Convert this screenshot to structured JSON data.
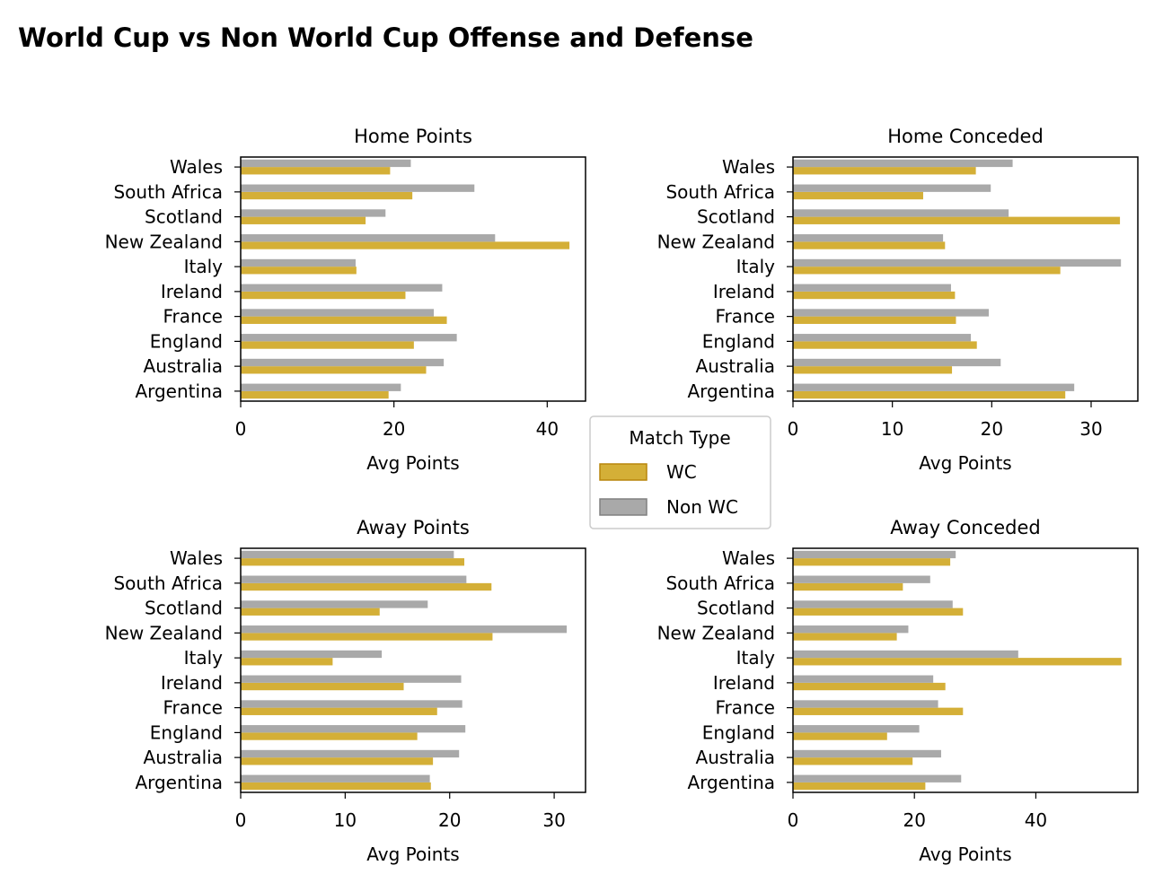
{
  "figure": {
    "title": "World Cup vs Non World Cup Offense and Defense"
  },
  "legend": {
    "title": "Match Type",
    "entries": [
      {
        "label": "WC",
        "color": "#D4AF37",
        "edge": "#B8860B"
      },
      {
        "label": "Non WC",
        "color": "#A9A9A9",
        "edge": "#808080"
      }
    ]
  },
  "chart_data": [
    {
      "type": "bar",
      "orientation": "horizontal",
      "title": "Home Points",
      "xlabel": "Avg Points",
      "ylabel": "",
      "categories": [
        "Argentina",
        "Australia",
        "England",
        "France",
        "Ireland",
        "Italy",
        "New Zealand",
        "Scotland",
        "South Africa",
        "Wales"
      ],
      "series": [
        {
          "name": "WC",
          "color": "#D4AF37",
          "values": [
            19.3,
            24.2,
            22.6,
            26.9,
            21.5,
            15.1,
            42.9,
            16.3,
            22.4,
            19.5
          ]
        },
        {
          "name": "Non WC",
          "color": "#A9A9A9",
          "values": [
            20.9,
            26.5,
            28.2,
            25.2,
            26.3,
            15.0,
            33.2,
            18.9,
            30.5,
            22.2
          ]
        }
      ],
      "xlim": [
        0,
        45
      ],
      "xticks": [
        0,
        20,
        40
      ],
      "grid": false
    },
    {
      "type": "bar",
      "orientation": "horizontal",
      "title": "Home Conceded",
      "xlabel": "Avg Points",
      "ylabel": "",
      "categories": [
        "Argentina",
        "Australia",
        "England",
        "France",
        "Ireland",
        "Italy",
        "New Zealand",
        "Scotland",
        "South Africa",
        "Wales"
      ],
      "series": [
        {
          "name": "WC",
          "color": "#D4AF37",
          "values": [
            27.4,
            16.0,
            18.5,
            16.4,
            16.3,
            26.9,
            15.3,
            32.9,
            13.1,
            18.4
          ]
        },
        {
          "name": "Non WC",
          "color": "#A9A9A9",
          "values": [
            28.3,
            20.9,
            17.9,
            19.7,
            15.9,
            33.0,
            15.1,
            21.7,
            19.9,
            22.1
          ]
        }
      ],
      "xlim": [
        0,
        34.7
      ],
      "xticks": [
        0,
        10,
        20,
        30
      ],
      "grid": false
    },
    {
      "type": "bar",
      "orientation": "horizontal",
      "title": "Away Points",
      "xlabel": "Avg Points",
      "ylabel": "",
      "categories": [
        "Argentina",
        "Australia",
        "England",
        "France",
        "Ireland",
        "Italy",
        "New Zealand",
        "Scotland",
        "South Africa",
        "Wales"
      ],
      "series": [
        {
          "name": "WC",
          "color": "#D4AF37",
          "values": [
            18.2,
            18.4,
            16.9,
            18.8,
            15.6,
            8.8,
            24.1,
            13.3,
            24.0,
            21.4
          ]
        },
        {
          "name": "Non WC",
          "color": "#A9A9A9",
          "values": [
            18.1,
            20.9,
            21.5,
            21.2,
            21.1,
            13.5,
            31.2,
            17.9,
            21.6,
            20.4
          ]
        }
      ],
      "xlim": [
        0,
        33
      ],
      "xticks": [
        0,
        10,
        20,
        30
      ],
      "grid": false
    },
    {
      "type": "bar",
      "orientation": "horizontal",
      "title": "Away Conceded",
      "xlabel": "Avg Points",
      "ylabel": "",
      "categories": [
        "Argentina",
        "Australia",
        "England",
        "France",
        "Ireland",
        "Italy",
        "New Zealand",
        "Scotland",
        "South Africa",
        "Wales"
      ],
      "series": [
        {
          "name": "WC",
          "color": "#D4AF37",
          "values": [
            21.8,
            19.7,
            15.5,
            28.0,
            25.1,
            54.1,
            17.1,
            28.0,
            18.1,
            25.9
          ]
        },
        {
          "name": "Non WC",
          "color": "#A9A9A9",
          "values": [
            27.7,
            24.4,
            20.8,
            23.9,
            23.1,
            37.1,
            19.0,
            26.3,
            22.6,
            26.8
          ]
        }
      ],
      "xlim": [
        0,
        56.8
      ],
      "xticks": [
        0,
        20,
        40
      ],
      "grid": false
    }
  ]
}
